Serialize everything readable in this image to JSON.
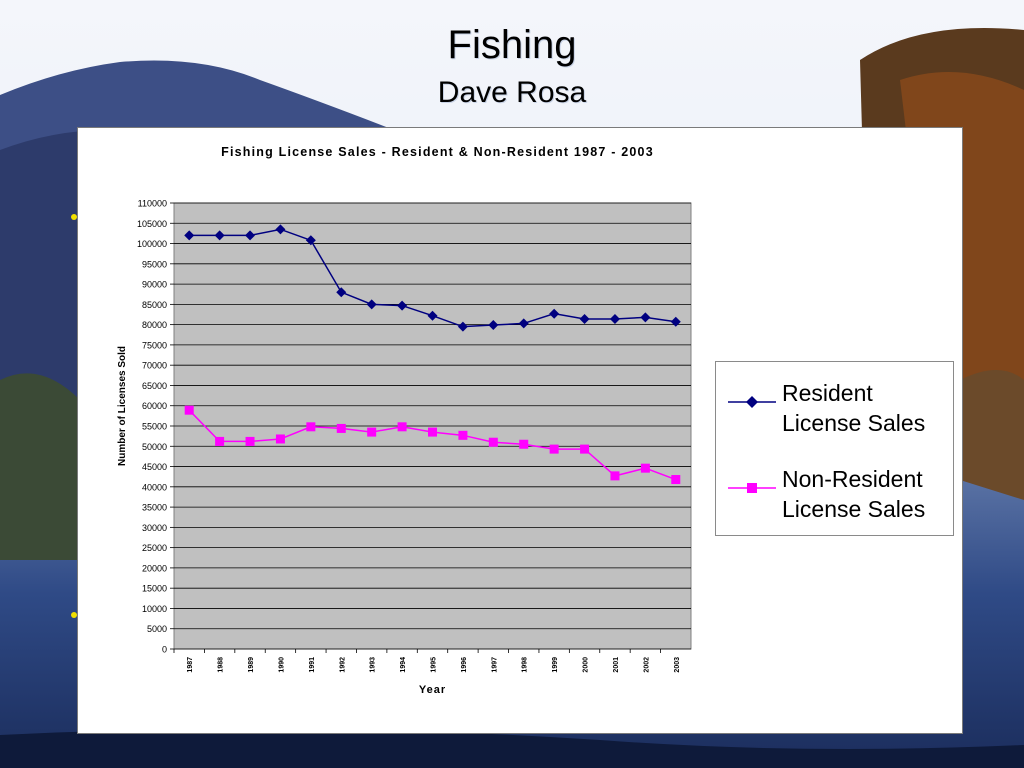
{
  "slide": {
    "title": "Fishing",
    "subtitle": "Dave Rosa"
  },
  "chart_data": {
    "type": "line",
    "title": "Fishing License Sales - Resident & Non-Resident 1987 - 2003",
    "xlabel": "Year",
    "ylabel": "Number of Licenses Sold",
    "categories": [
      "1987",
      "1988",
      "1989",
      "1990",
      "1991",
      "1992",
      "1993",
      "1994",
      "1995",
      "1996",
      "1997",
      "1998",
      "1999",
      "2000",
      "2001",
      "2002",
      "2003"
    ],
    "ylim": [
      0,
      110000
    ],
    "ytick_step": 5000,
    "plot_background": "#c0c0c0",
    "grid": true,
    "legend_position": "right",
    "series": [
      {
        "name": "Resident License Sales",
        "color": "#000080",
        "marker": "diamond",
        "values": [
          102000,
          102000,
          102000,
          103500,
          100800,
          88000,
          85000,
          84700,
          82200,
          79500,
          79900,
          80300,
          82700,
          81400,
          81400,
          81800,
          80700
        ]
      },
      {
        "name": "Non-Resident License Sales",
        "color": "#ff00ff",
        "marker": "square",
        "values": [
          58900,
          51200,
          51200,
          51800,
          54800,
          54400,
          53500,
          54800,
          53500,
          52700,
          51000,
          50500,
          49300,
          49300,
          42700,
          44600,
          41800
        ]
      }
    ]
  }
}
